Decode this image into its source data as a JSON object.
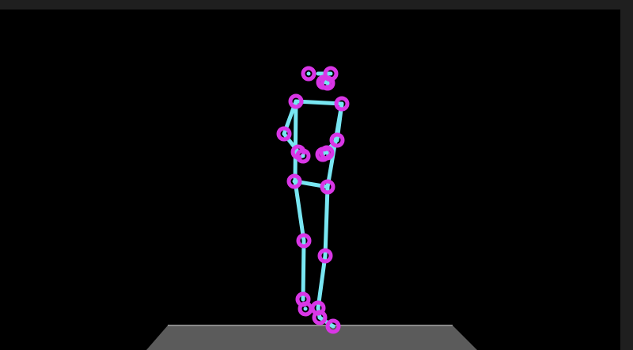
{
  "window": {
    "background_color": "#000000",
    "frame_color": "#1f1f1f"
  },
  "scene": {
    "ground_color": "#5b5b5b",
    "ground_edge_color": "#8a8a8a",
    "bone_color": "#78e6f2",
    "joint_color": "#d936e6"
  }
}
